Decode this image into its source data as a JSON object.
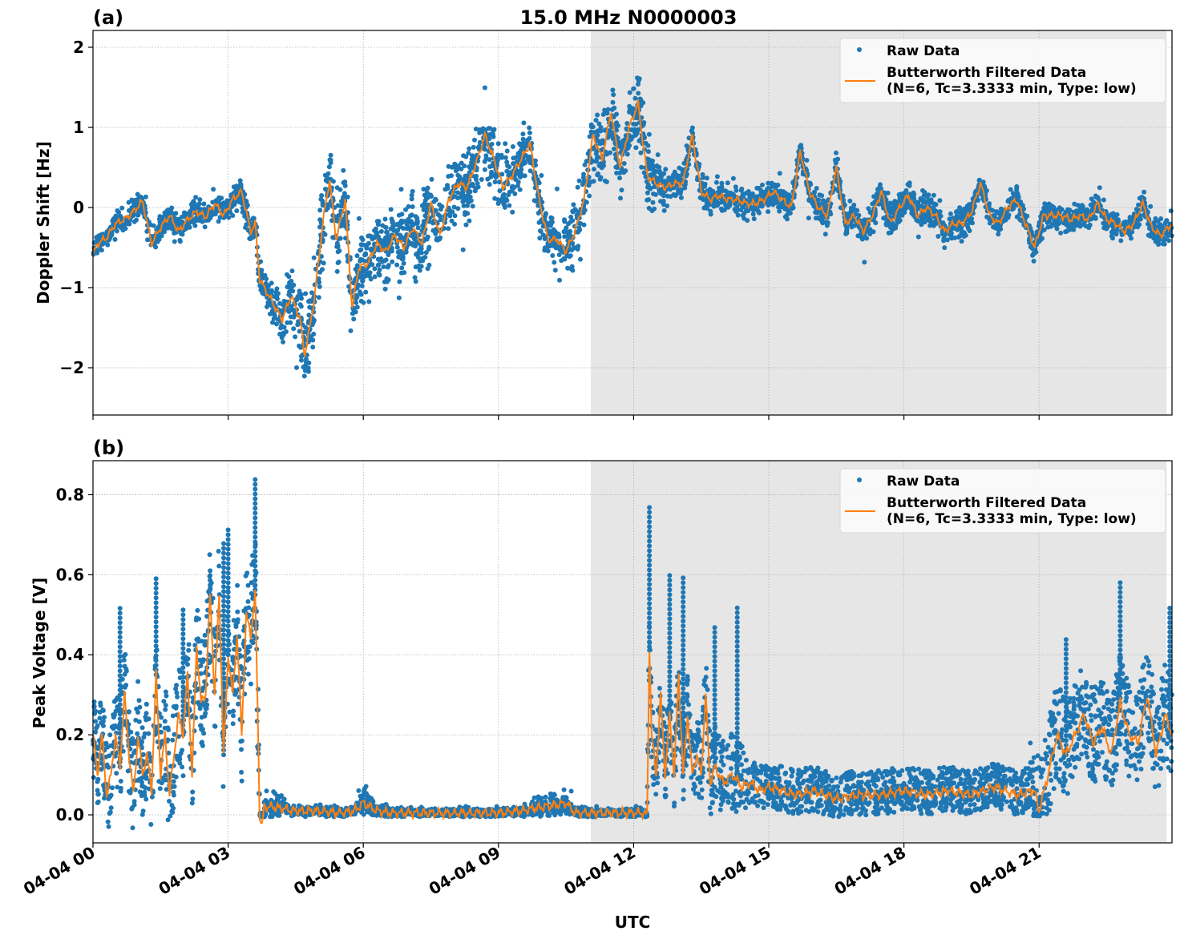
{
  "chart_data": [
    {
      "type": "scatter",
      "panel_label": "(a)",
      "title": "15.0 MHz N0000003",
      "xlabel": "",
      "ylabel": "Doppler Shift [Hz]",
      "x_unit": "hours UTC since 04-04 00",
      "xlim": [
        0,
        23.95
      ],
      "ylim": [
        -2.59,
        2.21
      ],
      "yticks": [
        2,
        1,
        0,
        -1,
        -2
      ],
      "ytick_labels": [
        "2",
        "1",
        "0",
        "−1",
        "−2"
      ],
      "grid": true,
      "shaded_x_range": [
        11.05,
        23.83
      ],
      "legend": {
        "placement": "top-right",
        "entries": [
          "Raw Data",
          "Butterworth Filtered Data\n(N=6, Tc=3.3333 min, Type: low)"
        ],
        "line1": "Raw Data",
        "line2a": "Butterworth Filtered Data",
        "line2b": "(N=6, Tc=3.3333 min, Type: low)"
      },
      "series": [
        {
          "name": "Raw Data",
          "style": "scatter",
          "color": "#1f77b4",
          "note": "dense point cloud around filtered curve",
          "spread": [
            [
              0,
              0.12
            ],
            [
              3.6,
              0.15
            ],
            [
              4.3,
              0.35
            ],
            [
              5.0,
              0.45
            ],
            [
              6.0,
              0.4
            ],
            [
              7.5,
              0.4
            ],
            [
              9.0,
              0.35
            ],
            [
              10.0,
              0.25
            ],
            [
              10.8,
              0.4
            ],
            [
              12.2,
              0.4
            ],
            [
              12.8,
              0.15
            ],
            [
              15.5,
              0.15
            ],
            [
              18.0,
              0.2
            ],
            [
              20.5,
              0.12
            ],
            [
              23.95,
              0.15
            ]
          ]
        },
        {
          "name": "Butterworth Filtered Data (N=6, Tc=3.3333 min, Type: low)",
          "style": "line",
          "color": "#ff7f0e",
          "x": [
            0,
            0.1,
            0.3,
            0.5,
            0.7,
            0.9,
            1.1,
            1.3,
            1.5,
            1.7,
            1.9,
            2.1,
            2.3,
            2.5,
            2.7,
            2.9,
            3.1,
            3.3,
            3.5,
            3.6,
            3.7,
            3.8,
            4.0,
            4.2,
            4.4,
            4.6,
            4.7,
            4.9,
            5.1,
            5.25,
            5.4,
            5.6,
            5.75,
            5.9,
            6.1,
            6.3,
            6.5,
            6.7,
            6.9,
            7.1,
            7.3,
            7.5,
            7.7,
            7.9,
            8.1,
            8.3,
            8.5,
            8.7,
            8.9,
            9.1,
            9.3,
            9.5,
            9.7,
            9.9,
            10.1,
            10.3,
            10.5,
            10.7,
            10.9,
            11.1,
            11.3,
            11.5,
            11.7,
            11.9,
            12.1,
            12.3,
            12.5,
            12.7,
            12.9,
            13.1,
            13.3,
            13.5,
            13.7,
            13.9,
            14.1,
            14.3,
            14.5,
            14.7,
            14.9,
            15.1,
            15.3,
            15.5,
            15.7,
            15.9,
            16.1,
            16.3,
            16.5,
            16.7,
            16.9,
            17.1,
            17.3,
            17.5,
            17.7,
            17.9,
            18.1,
            18.3,
            18.5,
            18.7,
            18.9,
            19.1,
            19.3,
            19.5,
            19.7,
            19.9,
            20.1,
            20.3,
            20.5,
            20.7,
            20.9,
            21.1,
            21.3,
            21.5,
            21.7,
            21.9,
            22.1,
            22.3,
            22.5,
            22.7,
            22.9,
            23.1,
            23.3,
            23.5,
            23.7,
            23.95
          ],
          "y": [
            -0.6,
            -0.45,
            -0.38,
            -0.2,
            -0.15,
            -0.05,
            0.08,
            -0.45,
            -0.25,
            -0.1,
            -0.3,
            -0.15,
            -0.05,
            -0.12,
            0.05,
            -0.1,
            0.1,
            0.2,
            -0.3,
            -0.2,
            -0.9,
            -1.0,
            -1.2,
            -1.4,
            -1.1,
            -1.4,
            -1.85,
            -1.2,
            -0.2,
            0.35,
            -0.4,
            0.1,
            -1.25,
            -0.75,
            -0.7,
            -0.45,
            -0.55,
            -0.35,
            -0.5,
            -0.25,
            -0.45,
            0.05,
            -0.35,
            0.1,
            0.3,
            0.25,
            0.55,
            0.9,
            0.6,
            0.25,
            0.4,
            0.6,
            0.8,
            0.1,
            -0.4,
            -0.4,
            -0.55,
            -0.3,
            0.1,
            0.9,
            0.6,
            1.2,
            0.5,
            1.0,
            1.3,
            0.4,
            0.3,
            0.25,
            0.3,
            0.3,
            0.9,
            0.2,
            0.1,
            0.15,
            0.1,
            0.1,
            0.05,
            0.05,
            0.1,
            0.2,
            0.1,
            0.0,
            0.7,
            0.2,
            0.0,
            -0.1,
            0.5,
            -0.2,
            -0.1,
            -0.3,
            -0.1,
            0.2,
            -0.2,
            0.0,
            0.15,
            -0.1,
            0.0,
            -0.1,
            -0.3,
            -0.2,
            -0.2,
            -0.05,
            0.3,
            -0.1,
            -0.2,
            0.0,
            0.1,
            -0.2,
            -0.5,
            -0.1,
            -0.1,
            -0.1,
            -0.15,
            -0.1,
            -0.15,
            0.05,
            -0.15,
            -0.2,
            -0.3,
            -0.2,
            0.05,
            -0.25,
            -0.35,
            -0.2
          ]
        }
      ]
    },
    {
      "type": "scatter",
      "panel_label": "(b)",
      "title": "",
      "xlabel": "UTC",
      "ylabel": "Peak Voltage [V]",
      "x_unit": "hours UTC since 04-04 00",
      "xlim": [
        0,
        23.95
      ],
      "ylim": [
        -0.07,
        0.885
      ],
      "yticks": [
        0.8,
        0.6,
        0.4,
        0.2,
        0.0
      ],
      "ytick_labels": [
        "0.8",
        "0.6",
        "0.4",
        "0.2",
        "0.0"
      ],
      "xticks": [
        0,
        3,
        6,
        9,
        12,
        15,
        18,
        21
      ],
      "xtick_labels": [
        "04-04 00",
        "04-04 03",
        "04-04 06",
        "04-04 09",
        "04-04 12",
        "04-04 15",
        "04-04 18",
        "04-04 21"
      ],
      "grid": true,
      "shaded_x_range": [
        11.05,
        23.83
      ],
      "legend": {
        "placement": "top-right",
        "entries": [
          "Raw Data",
          "Butterworth Filtered Data\n(N=6, Tc=3.3333 min, Type: low)"
        ],
        "line1": "Raw Data",
        "line2a": "Butterworth Filtered Data",
        "line2b": "(N=6, Tc=3.3333 min, Type: low)"
      },
      "series": [
        {
          "name": "Raw Data",
          "style": "scatter",
          "color": "#1f77b4",
          "peaks": [
            [
              0.6,
              0.52
            ],
            [
              1.4,
              0.6
            ],
            [
              2.0,
              0.52
            ],
            [
              2.6,
              0.62
            ],
            [
              2.9,
              0.68
            ],
            [
              3.0,
              0.72
            ],
            [
              3.6,
              0.84
            ],
            [
              12.35,
              0.77
            ],
            [
              12.8,
              0.61
            ],
            [
              13.1,
              0.6
            ],
            [
              13.8,
              0.48
            ],
            [
              14.3,
              0.52
            ],
            [
              21.6,
              0.44
            ],
            [
              22.8,
              0.59
            ],
            [
              23.9,
              0.52
            ]
          ]
        },
        {
          "name": "Butterworth Filtered Data (N=6, Tc=3.3333 min, Type: low)",
          "style": "line",
          "color": "#ff7f0e",
          "x": [
            0,
            0.1,
            0.2,
            0.3,
            0.4,
            0.5,
            0.6,
            0.7,
            0.8,
            0.9,
            1.0,
            1.1,
            1.2,
            1.3,
            1.4,
            1.5,
            1.6,
            1.7,
            1.8,
            1.9,
            2.0,
            2.1,
            2.2,
            2.3,
            2.4,
            2.5,
            2.6,
            2.7,
            2.8,
            2.9,
            3.0,
            3.1,
            3.2,
            3.3,
            3.4,
            3.5,
            3.6,
            3.65,
            3.7,
            3.75,
            3.8,
            4.0,
            4.5,
            5.0,
            5.5,
            5.8,
            6.0,
            6.3,
            6.6,
            7.0,
            8.0,
            9.0,
            9.5,
            10.0,
            10.3,
            10.5,
            10.7,
            11.0,
            12.0,
            12.2,
            12.3,
            12.35,
            12.4,
            12.5,
            12.6,
            12.7,
            12.8,
            12.9,
            13.0,
            13.1,
            13.2,
            13.3,
            13.4,
            13.5,
            13.6,
            13.7,
            13.8,
            13.9,
            14.0,
            14.2,
            14.4,
            14.6,
            14.8,
            15.0,
            15.3,
            15.6,
            16.0,
            16.5,
            17.0,
            17.5,
            18.0,
            18.5,
            19.0,
            19.5,
            20.0,
            20.5,
            20.9,
            21.0,
            21.2,
            21.4,
            21.6,
            21.8,
            22.0,
            22.2,
            22.4,
            22.6,
            22.8,
            23.0,
            23.2,
            23.4,
            23.6,
            23.8,
            23.95
          ],
          "y": [
            0.2,
            0.1,
            0.2,
            0.05,
            0.1,
            0.2,
            0.12,
            0.3,
            0.15,
            0.05,
            0.2,
            0.1,
            0.15,
            0.06,
            0.35,
            0.1,
            0.2,
            0.05,
            0.15,
            0.25,
            0.2,
            0.35,
            0.1,
            0.42,
            0.28,
            0.3,
            0.55,
            0.3,
            0.55,
            0.15,
            0.4,
            0.3,
            0.45,
            0.2,
            0.5,
            0.45,
            0.55,
            0.3,
            0.0,
            -0.03,
            0.02,
            0.02,
            0.01,
            0.01,
            0.005,
            0.01,
            0.03,
            0.01,
            0.005,
            0.005,
            0.004,
            0.005,
            0.01,
            0.02,
            0.025,
            0.03,
            0.005,
            0.005,
            0.005,
            0.005,
            0.0,
            0.42,
            0.2,
            0.1,
            0.3,
            0.1,
            0.25,
            0.1,
            0.35,
            0.1,
            0.25,
            0.1,
            0.15,
            0.1,
            0.3,
            0.08,
            0.12,
            0.1,
            0.08,
            0.1,
            0.07,
            0.08,
            0.06,
            0.07,
            0.06,
            0.05,
            0.06,
            0.04,
            0.05,
            0.05,
            0.06,
            0.05,
            0.06,
            0.05,
            0.07,
            0.05,
            0.06,
            0.01,
            0.1,
            0.2,
            0.15,
            0.2,
            0.25,
            0.18,
            0.22,
            0.15,
            0.28,
            0.2,
            0.18,
            0.3,
            0.15,
            0.25,
            0.2
          ]
        }
      ]
    }
  ]
}
